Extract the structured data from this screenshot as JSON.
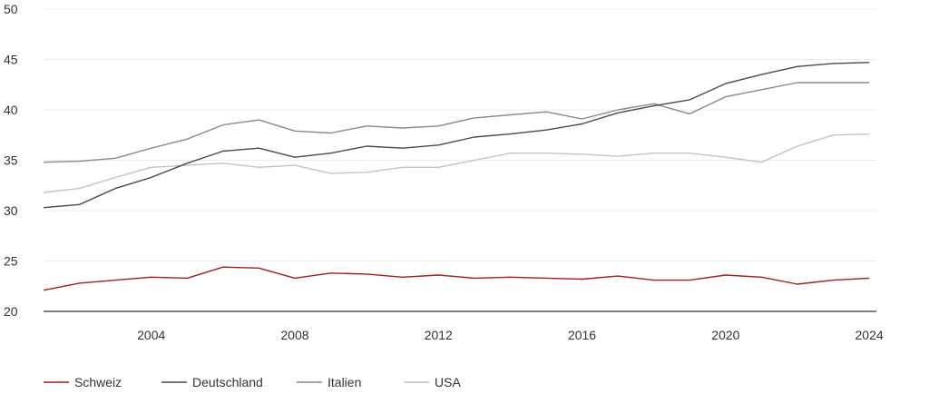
{
  "chart_data": {
    "type": "line",
    "title": "",
    "xlabel": "",
    "ylabel": "",
    "xlim": [
      2001,
      2024.2
    ],
    "ylim": [
      20,
      50
    ],
    "yticks": [
      "20",
      "25",
      "30",
      "35",
      "40",
      "45",
      "50"
    ],
    "xticks": [
      "2004",
      "2008",
      "2012",
      "2016",
      "2020",
      "2024"
    ],
    "grid": true,
    "legend": "bottom-left",
    "x": [
      2001,
      2002,
      2003,
      2004,
      2005,
      2006,
      2007,
      2008,
      2009,
      2010,
      2011,
      2012,
      2013,
      2014,
      2015,
      2016,
      2017,
      2018,
      2019,
      2020,
      2021,
      2022,
      2023,
      2024
    ],
    "series": [
      {
        "name": "Schweiz",
        "color": "#a31d1d",
        "values": [
          22.1,
          22.8,
          23.1,
          23.4,
          23.3,
          24.4,
          24.3,
          23.3,
          23.8,
          23.7,
          23.4,
          23.6,
          23.3,
          23.4,
          23.3,
          23.2,
          23.5,
          23.1,
          23.1,
          23.6,
          23.4,
          22.7,
          23.1,
          23.3
        ]
      },
      {
        "name": "Deutschland",
        "color": "#4a4a4a",
        "values": [
          30.3,
          30.6,
          32.2,
          33.3,
          34.7,
          35.9,
          36.2,
          35.3,
          35.7,
          36.4,
          36.2,
          36.5,
          37.3,
          37.6,
          38.0,
          38.6,
          39.7,
          40.4,
          41.0,
          42.6,
          43.5,
          44.3,
          44.6,
          44.7
        ]
      },
      {
        "name": "Italien",
        "color": "#8a8a8a",
        "values": [
          34.8,
          34.9,
          35.2,
          36.2,
          37.1,
          38.5,
          39.0,
          37.9,
          37.7,
          38.4,
          38.2,
          38.4,
          39.2,
          39.5,
          39.8,
          39.1,
          40.0,
          40.6,
          39.6,
          41.3,
          42.0,
          42.7,
          42.7,
          42.7
        ]
      },
      {
        "name": "USA",
        "color": "#c6c3bb",
        "values": [
          31.8,
          32.2,
          33.3,
          34.3,
          34.5,
          34.7,
          34.3,
          34.5,
          33.7,
          33.8,
          34.3,
          34.3,
          35.0,
          35.7,
          35.7,
          35.6,
          35.4,
          35.7,
          35.7,
          35.3,
          34.8,
          36.4,
          37.5,
          37.6
        ]
      }
    ]
  }
}
